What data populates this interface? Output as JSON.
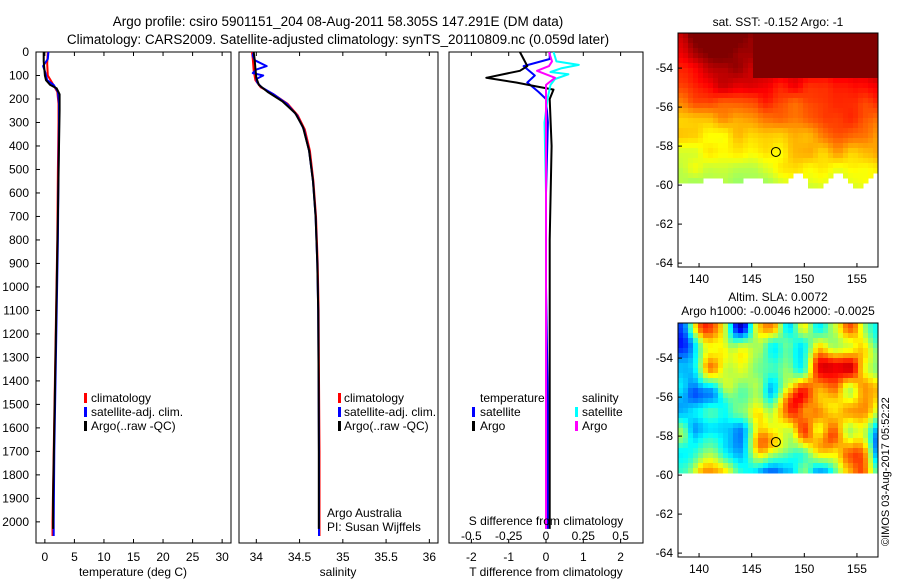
{
  "header": {
    "line1": "Argo profile: csiro 5901151_204 08-Aug-2011 58.305S 147.291E (DM data)",
    "line2": "Climatology: CARS2009. Satellite-adjusted climatology: synTS_20110809.nc (0.059d later)"
  },
  "colors": {
    "climatology": "#ff0000",
    "satellite": "#0000ff",
    "argo": "#000000",
    "satellite_s": "#00ffff",
    "argo_s": "#ff00ff"
  },
  "chart_data": [
    {
      "type": "line",
      "name": "temperature-profile",
      "xlabel": "temperature (deg C)",
      "xlim": [
        -1.5,
        31.5
      ],
      "ylim": [
        2090,
        0
      ],
      "xticks": [
        0,
        5,
        10,
        15,
        20,
        25,
        30
      ],
      "yticks": [
        0,
        100,
        200,
        300,
        400,
        500,
        600,
        700,
        800,
        900,
        1000,
        1100,
        1200,
        1300,
        1400,
        1500,
        1600,
        1700,
        1800,
        1900,
        2000
      ],
      "legend": [
        "climatology",
        "satellite-adj. clim.",
        "Argo(..raw -QC)"
      ],
      "series": [
        {
          "name": "climatology",
          "points": [
            [
              0.5,
              0
            ],
            [
              0.4,
              50
            ],
            [
              0.5,
              100
            ],
            [
              1.2,
              130
            ],
            [
              2.1,
              170
            ],
            [
              2.3,
              220
            ],
            [
              2.3,
              300
            ],
            [
              2.2,
              500
            ],
            [
              2.1,
              800
            ],
            [
              1.9,
              1100
            ],
            [
              1.7,
              1400
            ],
            [
              1.5,
              1700
            ],
            [
              1.3,
              2000
            ],
            [
              1.3,
              2060
            ]
          ]
        },
        {
          "name": "satellite-adj. clim.",
          "points": [
            [
              0.6,
              0
            ],
            [
              0.5,
              30
            ],
            [
              -0.3,
              60
            ],
            [
              0.1,
              90
            ],
            [
              0.4,
              120
            ],
            [
              1.5,
              140
            ],
            [
              2.2,
              170
            ],
            [
              2.4,
              220
            ],
            [
              2.4,
              300
            ],
            [
              2.3,
              500
            ],
            [
              2.2,
              800
            ],
            [
              2.0,
              1100
            ],
            [
              1.8,
              1400
            ],
            [
              1.6,
              1700
            ],
            [
              1.5,
              2000
            ],
            [
              1.5,
              2060
            ]
          ]
        },
        {
          "name": "Argo",
          "points": [
            [
              -0.2,
              0
            ],
            [
              -0.2,
              40
            ],
            [
              -0.1,
              70
            ],
            [
              0.0,
              100
            ],
            [
              0.2,
              120
            ],
            [
              0.9,
              140
            ],
            [
              2.0,
              155
            ],
            [
              2.5,
              180
            ],
            [
              2.5,
              250
            ],
            [
              2.4,
              400
            ],
            [
              2.2,
              700
            ],
            [
              2.0,
              1000
            ],
            [
              1.8,
              1300
            ],
            [
              1.6,
              1600
            ],
            [
              1.4,
              1900
            ],
            [
              1.4,
              2030
            ]
          ]
        }
      ]
    },
    {
      "type": "line",
      "name": "salinity-profile",
      "xlabel": "salinity",
      "xlim": [
        33.8,
        36.1
      ],
      "ylim": [
        2090,
        0
      ],
      "xticks": [
        34,
        34.5,
        35,
        35.5,
        36
      ],
      "legend": [
        "climatology",
        "satellite-adj. clim.",
        "Argo(..raw -QC)"
      ],
      "series": [
        {
          "name": "climatology",
          "points": [
            [
              33.95,
              0
            ],
            [
              33.96,
              30
            ],
            [
              33.97,
              80
            ],
            [
              33.99,
              120
            ],
            [
              34.05,
              150
            ],
            [
              34.2,
              180
            ],
            [
              34.36,
              220
            ],
            [
              34.48,
              270
            ],
            [
              34.56,
              330
            ],
            [
              34.62,
              420
            ],
            [
              34.66,
              550
            ],
            [
              34.69,
              700
            ],
            [
              34.71,
              900
            ],
            [
              34.72,
              1100
            ],
            [
              34.725,
              1400
            ],
            [
              34.73,
              1700
            ],
            [
              34.73,
              2060
            ]
          ]
        },
        {
          "name": "satellite-adj. clim.",
          "points": [
            [
              33.97,
              0
            ],
            [
              33.96,
              15
            ],
            [
              33.98,
              35
            ],
            [
              34.12,
              60
            ],
            [
              34.0,
              75
            ],
            [
              33.96,
              90
            ],
            [
              34.08,
              100
            ],
            [
              34.0,
              115
            ],
            [
              34.01,
              130
            ],
            [
              34.06,
              150
            ],
            [
              34.2,
              180
            ],
            [
              34.35,
              220
            ],
            [
              34.47,
              270
            ],
            [
              34.55,
              330
            ],
            [
              34.61,
              420
            ],
            [
              34.655,
              550
            ],
            [
              34.685,
              700
            ],
            [
              34.705,
              900
            ],
            [
              34.715,
              1100
            ],
            [
              34.72,
              1400
            ],
            [
              34.725,
              1700
            ],
            [
              34.725,
              2060
            ]
          ]
        },
        {
          "name": "Argo",
          "points": [
            [
              33.97,
              0
            ],
            [
              33.98,
              30
            ],
            [
              33.99,
              70
            ],
            [
              34.0,
              110
            ],
            [
              34.03,
              140
            ],
            [
              34.13,
              170
            ],
            [
              34.3,
              210
            ],
            [
              34.45,
              260
            ],
            [
              34.54,
              320
            ],
            [
              34.61,
              420
            ],
            [
              34.655,
              550
            ],
            [
              34.685,
              700
            ],
            [
              34.705,
              900
            ],
            [
              34.715,
              1100
            ],
            [
              34.72,
              1400
            ],
            [
              34.722,
              1700
            ],
            [
              34.722,
              2030
            ]
          ]
        }
      ],
      "annotations": [
        "Argo Australia",
        "PI: Susan Wijffels"
      ]
    },
    {
      "type": "line",
      "name": "difference-profile",
      "xlabel": "T difference from climatology",
      "xlabel_top": "S difference from climatology",
      "xlim": [
        -2.6,
        2.6
      ],
      "ylim": [
        2090,
        0
      ],
      "xticks": [
        -2,
        -1,
        0,
        1,
        2
      ],
      "xticks_s": [
        "-0.5",
        "-0.25",
        "0",
        "0.25",
        "0.5"
      ],
      "legend_t_title": "temperature",
      "legend_s_title": "salinity",
      "legend_t": [
        "satellite",
        "Argo"
      ],
      "legend_s": [
        "satellite",
        "Argo"
      ],
      "series": [
        {
          "name": "T satellite",
          "points": [
            [
              0.1,
              0
            ],
            [
              0.1,
              30
            ],
            [
              -0.6,
              60
            ],
            [
              -0.3,
              100
            ],
            [
              -0.5,
              130
            ],
            [
              -0.2,
              170
            ],
            [
              0.0,
              200
            ],
            [
              0.05,
              300
            ],
            [
              0.0,
              600
            ],
            [
              0.0,
              1000
            ],
            [
              0.05,
              1500
            ],
            [
              0.05,
              2030
            ]
          ]
        },
        {
          "name": "T Argo",
          "points": [
            [
              -0.7,
              0
            ],
            [
              -0.6,
              30
            ],
            [
              -0.5,
              60
            ],
            [
              -0.7,
              80
            ],
            [
              -1.6,
              110
            ],
            [
              -0.8,
              130
            ],
            [
              -0.3,
              145
            ],
            [
              0.2,
              160
            ],
            [
              0.1,
              200
            ],
            [
              0.15,
              400
            ],
            [
              0.1,
              800
            ],
            [
              0.1,
              1200
            ],
            [
              0.1,
              2030
            ]
          ]
        },
        {
          "name": "S satellite",
          "points": [
            [
              0.05,
              0
            ],
            [
              0.06,
              20
            ],
            [
              0.07,
              40
            ],
            [
              0.22,
              55
            ],
            [
              0.1,
              70
            ],
            [
              0.03,
              85
            ],
            [
              0.15,
              95
            ],
            [
              0.06,
              115
            ],
            [
              0.03,
              140
            ],
            [
              0.01,
              200
            ],
            [
              -0.01,
              300
            ],
            [
              0.0,
              600
            ],
            [
              0.0,
              2030
            ]
          ]
        },
        {
          "name": "S Argo",
          "points": [
            [
              0.02,
              0
            ],
            [
              0.03,
              20
            ],
            [
              0.04,
              40
            ],
            [
              0.02,
              60
            ],
            [
              -0.06,
              80
            ],
            [
              0.06,
              110
            ],
            [
              0.0,
              140
            ],
            [
              0.0,
              200
            ],
            [
              0.0,
              2030
            ]
          ]
        }
      ]
    },
    {
      "type": "heatmap",
      "name": "sst-map",
      "title": "sat. SST: -0.152 Argo: -1",
      "xticks": [
        140,
        145,
        150,
        155
      ],
      "yticks": [
        -54,
        -56,
        -58,
        -60,
        -62,
        -64
      ],
      "xlim": [
        138,
        157
      ],
      "ylim": [
        -64.2,
        -52.2
      ],
      "marker": [
        147.3,
        -58.3
      ]
    },
    {
      "type": "heatmap",
      "name": "sla-map",
      "title_line1": "Altim. SLA: 0.0072",
      "title_line2": "Argo h1000: -0.0046 h2000: -0.0025",
      "xticks": [
        140,
        145,
        150,
        155
      ],
      "yticks": [
        -54,
        -56,
        -58,
        -60,
        -62,
        -64
      ],
      "xlim": [
        138,
        157
      ],
      "ylim": [
        -64.2,
        -52.2
      ],
      "marker": [
        147.3,
        -58.3
      ]
    }
  ],
  "footer": {
    "credit": "©IMOS 03-Aug-2017 05:52:22"
  }
}
